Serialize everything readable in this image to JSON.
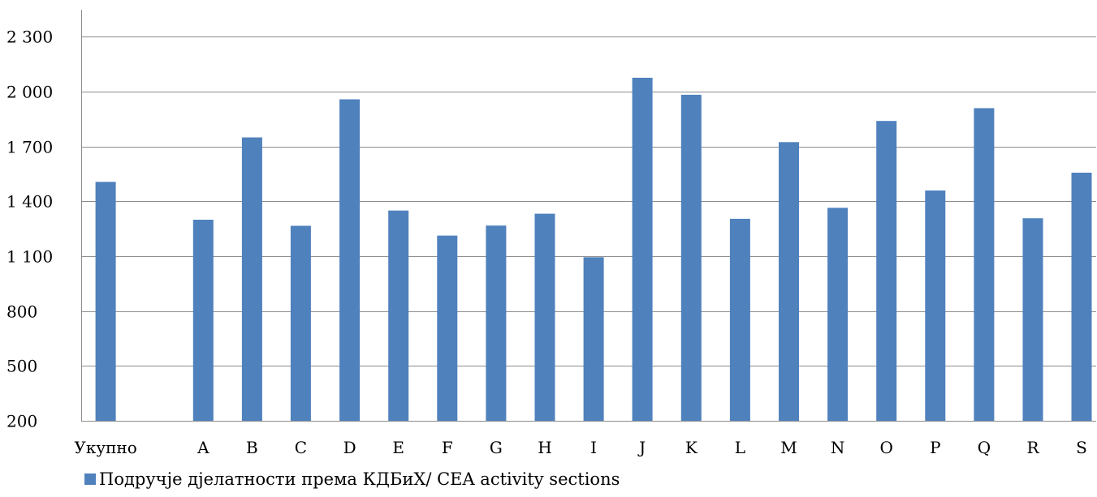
{
  "chart_data": {
    "type": "bar",
    "title": "",
    "xlabel": "",
    "ylabel": "",
    "categories": [
      "Укупно",
      "",
      "A",
      "B",
      "C",
      "D",
      "E",
      "F",
      "G",
      "H",
      "I",
      "J",
      "K",
      "L",
      "M",
      "N",
      "O",
      "P",
      "Q",
      "R",
      "S"
    ],
    "series": [
      {
        "name": "Подручје дјелатности према КДБиХ/ CEA activity sections",
        "color": "#4F81BD",
        "values": [
          1506,
          null,
          1299,
          1749,
          1266,
          1957,
          1349,
          1212,
          1267,
          1332,
          1094,
          2075,
          1982,
          1304,
          1723,
          1364,
          1839,
          1459,
          1909,
          1307,
          1556
        ]
      }
    ],
    "ylim": [
      200,
      2500
    ],
    "yticks": [
      200,
      500,
      800,
      1100,
      1400,
      1700,
      2000,
      2300
    ],
    "ytick_labels": [
      "200",
      "500",
      "800",
      "1 100",
      "1 400",
      "1 700",
      "2 000",
      "2 300"
    ],
    "grid": true,
    "legend": "bottom-left"
  }
}
